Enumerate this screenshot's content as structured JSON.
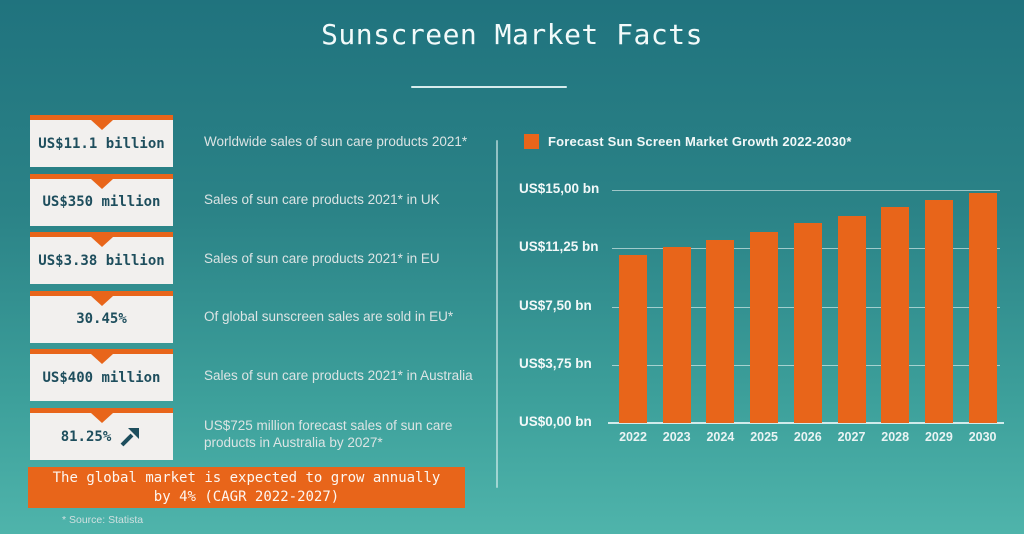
{
  "title": "Sunscreen Market Facts",
  "source_note": "* Source: Statista",
  "colors": {
    "accent_orange": "#E8651A",
    "background_top": "#20737E",
    "background_bottom": "#4FB4AB",
    "stat_box_bg": "#F2F0EE",
    "stat_value_text": "#1E4E5D"
  },
  "stats": [
    {
      "value": "US$11.1 billion",
      "description": "Worldwide sales of sun care products 2021*",
      "arrow": false
    },
    {
      "value": "US$350 million",
      "description": "Sales of sun care products 2021* in UK",
      "arrow": false
    },
    {
      "value": "US$3.38 billion",
      "description": "Sales of sun care products 2021* in EU",
      "arrow": false
    },
    {
      "value": "30.45%",
      "description": "Of global sunscreen sales are sold in EU*",
      "arrow": false
    },
    {
      "value": "US$400 million",
      "description": "Sales of sun care products 2021* in Australia",
      "arrow": false
    },
    {
      "value": "81.25%",
      "description": "US$725 million forecast sales of sun care products in Australia by 2027*",
      "arrow": true
    }
  ],
  "banner": {
    "line1": "The global market is expected to grow annually",
    "line2": "by 4% (CAGR 2022-2027)"
  },
  "chart_data": {
    "type": "bar",
    "title": "Forecast Sun Screen Market Growth 2022-2030*",
    "categories": [
      "2022",
      "2023",
      "2024",
      "2025",
      "2026",
      "2027",
      "2028",
      "2029",
      "2030"
    ],
    "values": [
      10.8,
      11.3,
      11.75,
      12.3,
      12.85,
      13.35,
      13.9,
      14.35,
      14.8
    ],
    "unit": "US$ bn",
    "ylim": [
      0,
      15
    ],
    "ytick_values": [
      0,
      3.75,
      7.5,
      11.25,
      15
    ],
    "ytick_labels": [
      "US$0,00 bn",
      "US$3,75 bn",
      "US$7,50 bn",
      "US$11,25 bn",
      "US$15,00 bn"
    ],
    "bar_color": "#E8651A",
    "grid": true,
    "legend_position": "top-left"
  }
}
